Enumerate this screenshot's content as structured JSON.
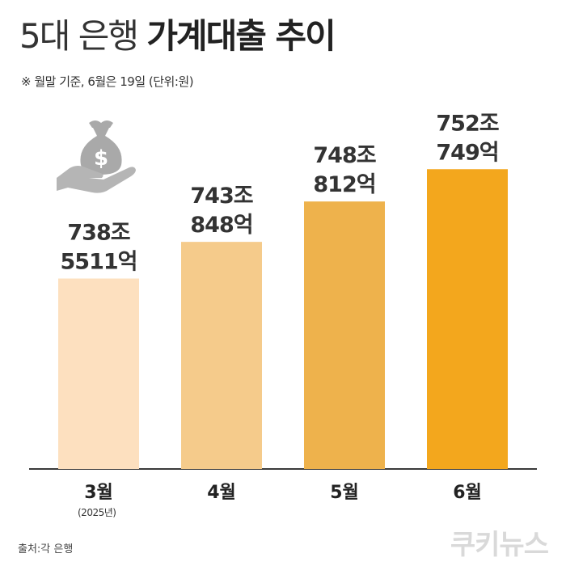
{
  "header": {
    "title_light": "5대 은행",
    "title_bold": "가계대출 추이",
    "subtitle": "※ 월말 기준, 6월은 19일 (단위:원)"
  },
  "chart_data": {
    "type": "bar",
    "categories": [
      "3월",
      "4월",
      "5월",
      "6월"
    ],
    "category_notes": [
      "(2025년)",
      "",
      "",
      ""
    ],
    "values": [
      738.5511,
      743.0848,
      748.0812,
      752.0749
    ],
    "data_labels": [
      [
        "738조",
        "5511억"
      ],
      [
        "743조",
        "848억"
      ],
      [
        "748조",
        "812억"
      ],
      [
        "752조",
        "749억"
      ]
    ],
    "bar_colors": [
      "#fde0bf",
      "#f5cb8b",
      "#eeb24c",
      "#f3a71d"
    ],
    "ylim": [
      715,
      754
    ],
    "grid": false
  },
  "footer": {
    "source": "출처:각 은행",
    "brand": "쿠키뉴스"
  },
  "icons": {
    "illustration": "money-bag-hand-icon"
  }
}
